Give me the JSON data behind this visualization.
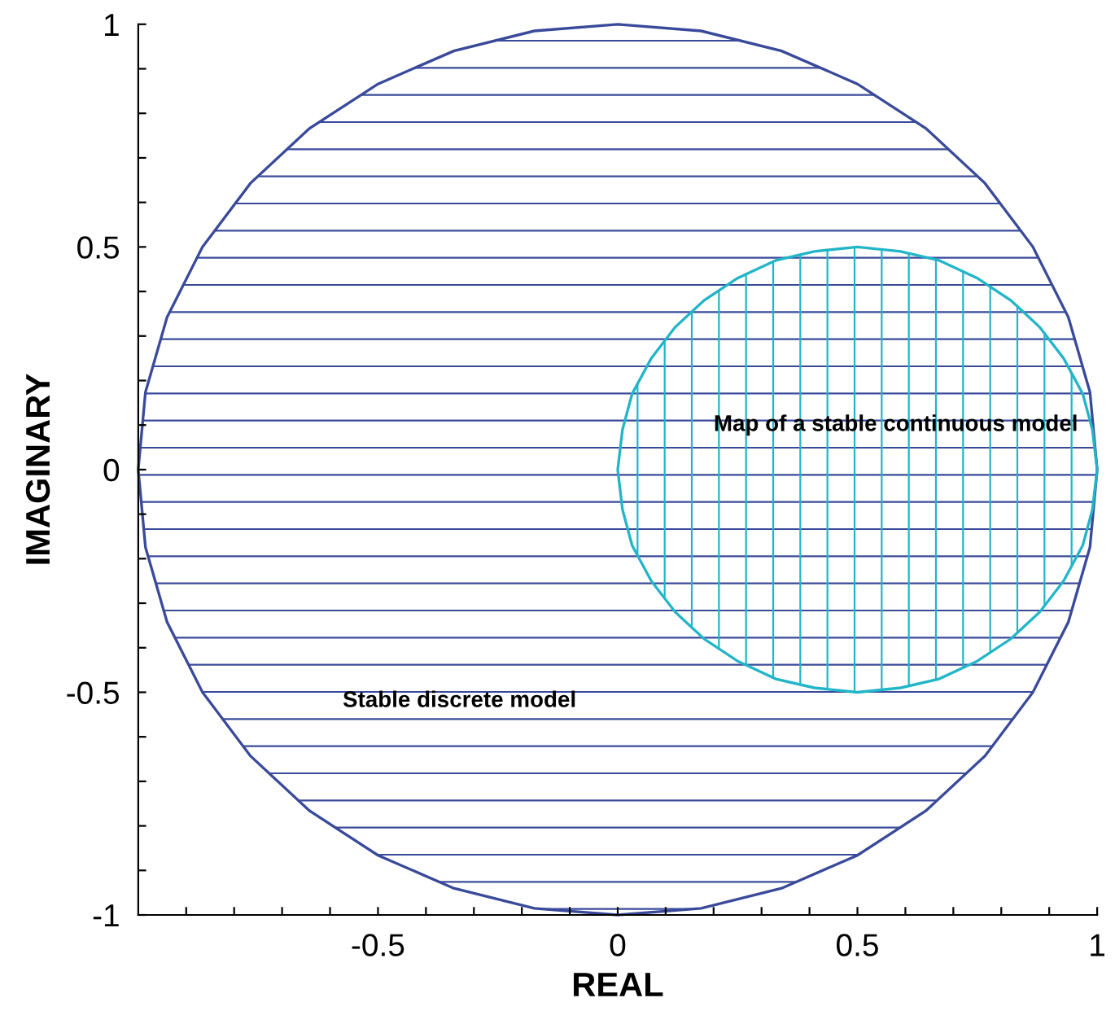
{
  "chart_data": {
    "type": "area",
    "xlabel": "REAL",
    "ylabel": "IMAGINARY",
    "xlim": [
      -1,
      1
    ],
    "ylim": [
      -1,
      1
    ],
    "xticks": [
      {
        "value": -0.9,
        "label": null
      },
      {
        "value": -0.8,
        "label": null
      },
      {
        "value": -0.7,
        "label": null
      },
      {
        "value": -0.6,
        "label": null
      },
      -0.5,
      {
        "value": -0.4,
        "label": null
      },
      {
        "value": -0.3,
        "label": null
      },
      {
        "value": -0.2,
        "label": null
      },
      {
        "value": -0.1,
        "label": null
      },
      0,
      {
        "value": 0.1,
        "label": null
      },
      {
        "value": 0.2,
        "label": null
      },
      {
        "value": 0.3,
        "label": null
      },
      {
        "value": 0.4,
        "label": null
      },
      0.5,
      {
        "value": 0.6,
        "label": null
      },
      {
        "value": 0.7,
        "label": null
      },
      {
        "value": 0.8,
        "label": null
      },
      {
        "value": 0.9,
        "label": null
      },
      1
    ],
    "yticks": [
      -1,
      {
        "value": -0.9,
        "label": null
      },
      {
        "value": -0.8,
        "label": null
      },
      {
        "value": -0.7,
        "label": null
      },
      {
        "value": -0.6,
        "label": null
      },
      -0.5,
      {
        "value": -0.4,
        "label": null
      },
      {
        "value": -0.3,
        "label": null
      },
      {
        "value": -0.2,
        "label": null
      },
      {
        "value": -0.1,
        "label": null
      },
      0,
      {
        "value": 0.1,
        "label": null
      },
      {
        "value": 0.2,
        "label": null
      },
      {
        "value": 0.3,
        "label": null
      },
      {
        "value": 0.4,
        "label": null
      },
      0.5,
      {
        "value": 0.6,
        "label": null
      },
      {
        "value": 0.7,
        "label": null
      },
      {
        "value": 0.8,
        "label": null
      },
      {
        "value": 0.9,
        "label": null
      },
      1
    ],
    "grid": false,
    "legend": false,
    "series": [
      {
        "color": "#3a4a9a",
        "x": [
          1,
          0.985,
          0.94,
          0.866,
          0.766,
          0.643,
          0.5,
          0.342,
          0.174,
          0,
          -0.174,
          -0.342,
          -0.5,
          -0.643,
          -0.766,
          -0.866,
          -0.94,
          -0.985,
          -1,
          -0.985,
          -0.94,
          -0.866,
          -0.766,
          -0.643,
          -0.5,
          -0.342,
          -0.174,
          0,
          0.174,
          0.342,
          0.5,
          0.643,
          0.766,
          0.866,
          0.94,
          0.985,
          1
        ],
        "values": [
          0,
          0.174,
          0.342,
          0.5,
          0.643,
          0.766,
          0.866,
          0.94,
          0.985,
          1,
          0.985,
          0.94,
          0.866,
          0.766,
          0.643,
          0.5,
          0.342,
          0.174,
          0,
          -0.174,
          -0.342,
          -0.5,
          -0.643,
          -0.766,
          -0.866,
          -0.94,
          -0.985,
          -1,
          -0.985,
          -0.94,
          -0.866,
          -0.766,
          -0.643,
          -0.5,
          -0.342,
          -0.174,
          0
        ]
      },
      {
        "color": "#22b5c8",
        "x": [
          1,
          0.99,
          0.97,
          0.93,
          0.88,
          0.82,
          0.75,
          0.67,
          0.59,
          0.5,
          0.41,
          0.33,
          0.25,
          0.18,
          0.12,
          0.07,
          0.03,
          0.01,
          0,
          0.01,
          0.03,
          0.07,
          0.12,
          0.18,
          0.25,
          0.33,
          0.41,
          0.5,
          0.59,
          0.67,
          0.75,
          0.82,
          0.88,
          0.93,
          0.97,
          0.99,
          1
        ],
        "values": [
          0,
          0.09,
          0.17,
          0.25,
          0.32,
          0.38,
          0.43,
          0.47,
          0.49,
          0.5,
          0.49,
          0.47,
          0.43,
          0.38,
          0.32,
          0.25,
          0.17,
          0.09,
          0,
          -0.09,
          -0.17,
          -0.25,
          -0.32,
          -0.38,
          -0.43,
          -0.47,
          -0.49,
          -0.5,
          -0.49,
          -0.47,
          -0.43,
          -0.38,
          -0.32,
          -0.25,
          -0.17,
          -0.09,
          0
        ]
      }
    ],
    "annotations": [
      "Stable discrete model",
      "Map of a stable continuous model"
    ]
  }
}
